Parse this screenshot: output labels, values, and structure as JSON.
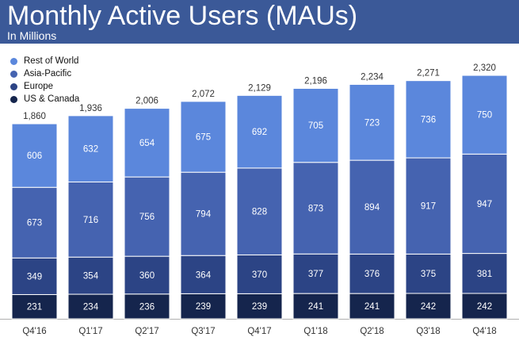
{
  "header": {
    "title": "Monthly Active Users (MAUs)",
    "subtitle": "In Millions"
  },
  "colors": {
    "header_bg": "#3b5998",
    "rest_of_world": "#5b87dc",
    "asia_pacific": "#4563b0",
    "europe": "#2c4485",
    "us_canada": "#15254d"
  },
  "chart_data": {
    "type": "bar",
    "stacked": true,
    "title": "Monthly Active Users (MAUs)",
    "subtitle": "In Millions",
    "categories": [
      "Q4'16",
      "Q1'17",
      "Q2'17",
      "Q3'17",
      "Q4'17",
      "Q1'18",
      "Q2'18",
      "Q3'18",
      "Q4'18"
    ],
    "series": [
      {
        "name": "US & Canada",
        "color": "#15254d",
        "values": [
          231,
          234,
          236,
          239,
          239,
          241,
          241,
          242,
          242
        ]
      },
      {
        "name": "Europe",
        "color": "#2c4485",
        "values": [
          349,
          354,
          360,
          364,
          370,
          377,
          376,
          375,
          381
        ]
      },
      {
        "name": "Asia-Pacific",
        "color": "#4563b0",
        "values": [
          673,
          716,
          756,
          794,
          828,
          873,
          894,
          917,
          947
        ]
      },
      {
        "name": "Rest of World",
        "color": "#5b87dc",
        "values": [
          606,
          632,
          654,
          675,
          692,
          705,
          723,
          736,
          750
        ]
      }
    ],
    "totals": [
      "1,860",
      "1,936",
      "2,006",
      "2,072",
      "2,129",
      "2,196",
      "2,234",
      "2,271",
      "2,320"
    ],
    "legend": [
      "Rest of World",
      "Asia-Pacific",
      "Europe",
      "US & Canada"
    ],
    "legend_position": "top-left",
    "ylim": [
      0,
      2320
    ],
    "grid": false
  }
}
